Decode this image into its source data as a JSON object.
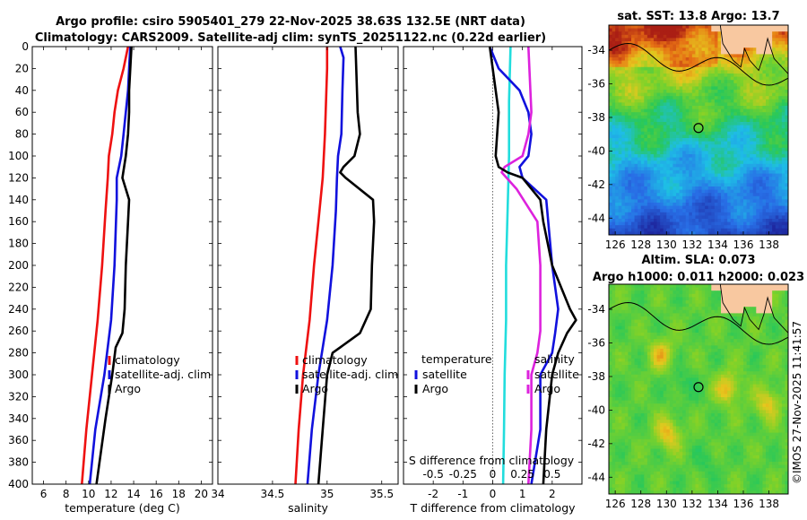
{
  "title": {
    "line1": "Argo profile: csiro 5905401_279 22-Nov-2025 38.63S 132.5E (NRT data)",
    "line2": "Climatology: CARS2009. Satellite-adj clim: synTS_20251122.nc (0.22d earlier)"
  },
  "watermark": "©IMOS 27-Nov-2025 11:41:57",
  "colors": {
    "climatology": "#ee1111",
    "satellite": "#1111dd",
    "argo": "#000000",
    "t_sat": "#22dddd",
    "s_sat": "#dd22dd",
    "zero_line": "#666666"
  },
  "chart_data": [
    {
      "type": "line",
      "id": "temperature",
      "xlabel": "temperature (deg C)",
      "xlim": [
        5,
        21
      ],
      "xticks": [
        6,
        8,
        10,
        12,
        14,
        16,
        18,
        20
      ],
      "ylim": [
        400,
        0
      ],
      "yticks": [
        0,
        20,
        40,
        60,
        80,
        100,
        120,
        140,
        160,
        180,
        200,
        220,
        240,
        260,
        280,
        300,
        320,
        340,
        360,
        380,
        400
      ],
      "legend": {
        "position": "lower-right",
        "entries": [
          "climatology",
          "satellite-adj. clim",
          "Argo"
        ]
      },
      "series": [
        {
          "name": "climatology",
          "color": "#ee1111",
          "depth": [
            0,
            20,
            40,
            60,
            80,
            100,
            120,
            150,
            200,
            250,
            300,
            350,
            400
          ],
          "values": [
            13.5,
            13.1,
            12.6,
            12.3,
            12.1,
            11.8,
            11.7,
            11.5,
            11.2,
            10.8,
            10.3,
            9.8,
            9.4
          ]
        },
        {
          "name": "satellite-adj. clim",
          "color": "#1111dd",
          "depth": [
            0,
            20,
            40,
            60,
            80,
            100,
            120,
            140,
            200,
            250,
            300,
            350,
            400
          ],
          "values": [
            13.7,
            13.6,
            13.5,
            13.3,
            13.1,
            12.9,
            12.5,
            12.5,
            12.3,
            12.0,
            11.4,
            10.6,
            10.1
          ]
        },
        {
          "name": "Argo",
          "color": "#000000",
          "depth": [
            0,
            20,
            40,
            60,
            80,
            100,
            120,
            140,
            160,
            200,
            240,
            262,
            275,
            300,
            340,
            400
          ],
          "values": [
            13.8,
            13.7,
            13.6,
            13.6,
            13.5,
            13.3,
            13.0,
            13.6,
            13.5,
            13.3,
            13.2,
            13.0,
            12.4,
            12.1,
            11.5,
            10.7
          ]
        }
      ]
    },
    {
      "type": "line",
      "id": "salinity",
      "xlabel": "salinity",
      "xlim": [
        34,
        35.65
      ],
      "xticks": [
        34,
        34.5,
        35,
        35.5
      ],
      "ylim": [
        400,
        0
      ],
      "legend": {
        "position": "lower-right",
        "entries": [
          "climatology",
          "satellite-adj. clim",
          "Argo"
        ]
      },
      "series": [
        {
          "name": "climatology",
          "color": "#ee1111",
          "depth": [
            0,
            20,
            50,
            80,
            120,
            160,
            200,
            250,
            300,
            350,
            400
          ],
          "values": [
            35.0,
            35.0,
            34.99,
            34.98,
            34.96,
            34.92,
            34.88,
            34.84,
            34.78,
            34.74,
            34.71
          ]
        },
        {
          "name": "satellite-adj. clim",
          "color": "#1111dd",
          "depth": [
            0,
            10,
            40,
            80,
            100,
            120,
            150,
            200,
            250,
            300,
            350,
            400
          ],
          "values": [
            35.12,
            35.15,
            35.14,
            35.13,
            35.1,
            35.09,
            35.08,
            35.05,
            35.0,
            34.92,
            34.86,
            34.82
          ]
        },
        {
          "name": "Argo",
          "color": "#000000",
          "depth": [
            0,
            60,
            80,
            100,
            110,
            115,
            120,
            140,
            160,
            200,
            240,
            262,
            280,
            300,
            350,
            400
          ],
          "values": [
            35.26,
            35.28,
            35.3,
            35.25,
            35.15,
            35.12,
            35.17,
            35.42,
            35.43,
            35.41,
            35.4,
            35.3,
            35.05,
            35.0,
            34.96,
            34.92
          ]
        }
      ]
    },
    {
      "type": "line",
      "id": "difference",
      "xlabel": "T difference from climatology",
      "xlabel_top": "S difference from climatology",
      "xlim": [
        -3,
        3
      ],
      "xticks": [
        -2,
        -1,
        0,
        1,
        2
      ],
      "xticks_s": [
        -0.5,
        -0.25,
        0,
        0.25,
        0.5
      ],
      "ylim": [
        400,
        0
      ],
      "legend": {
        "position": "lower-right",
        "temperature_title": "temperature",
        "temperature_entries": [
          "satellite",
          "Argo"
        ],
        "salinity_title": "salinity",
        "salinity_entries": [
          "satellite",
          "Argo"
        ]
      },
      "series": [
        {
          "name": "temperature satellite",
          "color": "#22dddd",
          "depth": [
            0,
            50,
            100,
            150,
            200,
            250,
            300,
            350,
            400
          ],
          "values": [
            0.6,
            0.55,
            0.55,
            0.5,
            0.45,
            0.45,
            0.4,
            0.38,
            0.35
          ]
        },
        {
          "name": "temperature Argo",
          "color": "#1111dd",
          "depth": [
            0,
            20,
            40,
            60,
            80,
            100,
            110,
            120,
            140,
            200,
            240,
            262,
            280,
            300,
            350,
            400
          ],
          "values": [
            -0.1,
            0.2,
            0.9,
            1.2,
            1.3,
            1.2,
            0.9,
            1.0,
            1.8,
            2.0,
            2.2,
            2.1,
            2.0,
            1.6,
            1.6,
            1.3
          ]
        },
        {
          "name": "salinity satellite",
          "color": "#dd22dd",
          "depth": [
            0,
            60,
            80,
            100,
            110,
            115,
            130,
            160,
            200,
            260,
            280,
            300,
            350,
            400
          ],
          "values": [
            1.2,
            1.3,
            1.2,
            1.0,
            0.4,
            0.3,
            0.8,
            1.5,
            1.6,
            1.6,
            1.5,
            1.3,
            1.3,
            1.2
          ]
        },
        {
          "name": "salinity Argo",
          "color": "#000000",
          "depth": [
            0,
            20,
            60,
            100,
            110,
            115,
            120,
            140,
            160,
            200,
            240,
            250,
            262,
            280,
            300,
            350,
            400
          ],
          "values": [
            -0.1,
            0.0,
            0.2,
            0.1,
            0.2,
            0.5,
            1.0,
            1.6,
            1.7,
            2.0,
            2.6,
            2.8,
            2.5,
            2.2,
            2.0,
            1.8,
            1.7
          ]
        }
      ]
    },
    {
      "type": "heatmap",
      "id": "sst",
      "title": "sat. SST: 13.8 Argo: 13.7",
      "xlim": [
        125.5,
        139.5
      ],
      "ylim": [
        -45,
        -32.5
      ],
      "xticks": [
        126,
        128,
        130,
        132,
        134,
        136,
        138
      ],
      "yticks": [
        -34,
        -36,
        -38,
        -40,
        -42,
        -44
      ],
      "profile_marker": {
        "lon": 132.5,
        "lat": -38.63
      }
    },
    {
      "type": "heatmap",
      "id": "sla",
      "title": "Altim. SLA: 0.073",
      "subtitle": "Argo h1000: 0.011 h2000: 0.023",
      "xlim": [
        125.5,
        139.5
      ],
      "ylim": [
        -45,
        -32.5
      ],
      "xticks": [
        126,
        128,
        130,
        132,
        134,
        136,
        138
      ],
      "yticks": [
        -34,
        -36,
        -38,
        -40,
        -42,
        -44
      ],
      "profile_marker": {
        "lon": 132.5,
        "lat": -38.63
      }
    }
  ]
}
